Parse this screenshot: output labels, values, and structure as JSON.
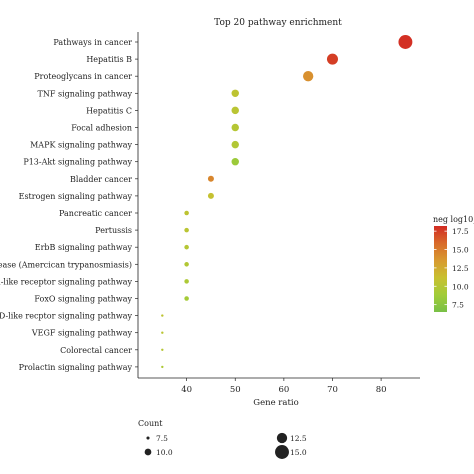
{
  "chart_data": {
    "type": "scatter",
    "title": "Top 20 pathway enrichment",
    "xlabel": "Gene ratio",
    "ylabel": "",
    "xlim": [
      30,
      88
    ],
    "xticks": [
      40,
      50,
      60,
      70,
      80
    ],
    "pathways": [
      {
        "name": "Pathways in cancer",
        "gene_ratio": 85,
        "count": 15.0,
        "neg_log10": 18.0
      },
      {
        "name": "Hepatitis B",
        "gene_ratio": 70,
        "count": 13.0,
        "neg_log10": 17.5
      },
      {
        "name": "Proteoglycans in cancer",
        "gene_ratio": 65,
        "count": 12.5,
        "neg_log10": 14.0
      },
      {
        "name": "TNF signaling pathway",
        "gene_ratio": 50,
        "count": 10.5,
        "neg_log10": 10.5
      },
      {
        "name": "Hepatitis C",
        "gene_ratio": 50,
        "count": 10.5,
        "neg_log10": 10.3
      },
      {
        "name": "Focal adhesion",
        "gene_ratio": 50,
        "count": 10.5,
        "neg_log10": 10.0
      },
      {
        "name": "MAPK signaling pathway",
        "gene_ratio": 50,
        "count": 10.5,
        "neg_log10": 9.8
      },
      {
        "name": "P13-Akt signaling pathway",
        "gene_ratio": 50,
        "count": 10.5,
        "neg_log10": 8.5
      },
      {
        "name": "Bladder cancer",
        "gene_ratio": 45,
        "count": 9.5,
        "neg_log10": 14.5
      },
      {
        "name": "Estrogen signaling pathway",
        "gene_ratio": 45,
        "count": 9.5,
        "neg_log10": 11.0
      },
      {
        "name": "Pancreatic cancer",
        "gene_ratio": 40,
        "count": 8.5,
        "neg_log10": 10.5
      },
      {
        "name": "Pertussis",
        "gene_ratio": 40,
        "count": 8.5,
        "neg_log10": 10.3
      },
      {
        "name": "ErbB signaling pathway",
        "gene_ratio": 40,
        "count": 8.5,
        "neg_log10": 10.0
      },
      {
        "name": "disease (Amercican trypanosmiasis)",
        "gene_ratio": 40,
        "count": 8.5,
        "neg_log10": 9.8
      },
      {
        "name": "Toll-like receptor signaling pathway",
        "gene_ratio": 40,
        "count": 8.5,
        "neg_log10": 9.5
      },
      {
        "name": "FoxO signaling pathway",
        "gene_ratio": 40,
        "count": 8.5,
        "neg_log10": 9.0
      },
      {
        "name": "NOD-like recptor signaling pathway",
        "gene_ratio": 35,
        "count": 7.0,
        "neg_log10": 10.5
      },
      {
        "name": "VEGF signaling pathway",
        "gene_ratio": 35,
        "count": 7.0,
        "neg_log10": 10.3
      },
      {
        "name": "Colorectal cancer",
        "gene_ratio": 35,
        "count": 7.0,
        "neg_log10": 10.0
      },
      {
        "name": "Prolactin signaling pathway",
        "gene_ratio": 35,
        "count": 7.0,
        "neg_log10": 9.5
      }
    ],
    "color_legend": {
      "title": "neg log10_",
      "range": [
        6.5,
        18.2
      ],
      "ticks": [
        "7.5",
        "10.0",
        "12.5",
        "15.0",
        "17.5"
      ],
      "tick_values": [
        7.5,
        10.0,
        12.5,
        15.0,
        17.5
      ],
      "colors": [
        "#78c046",
        "#a2cc38",
        "#c8c030",
        "#d89a30",
        "#d86a2a",
        "#d22b23"
      ]
    },
    "size_legend": {
      "title": "Count",
      "labels": [
        "7.5",
        "10.0",
        "12.5",
        "15.0"
      ],
      "values": [
        7.5,
        10.0,
        12.5,
        15.0
      ]
    },
    "grid": false,
    "legend_position": "right"
  }
}
